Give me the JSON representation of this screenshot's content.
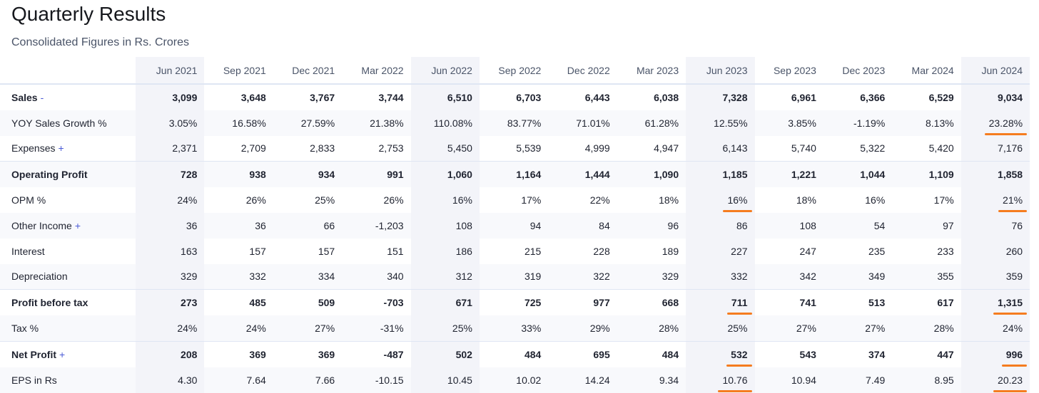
{
  "title": "Quarterly Results",
  "subtitle": "Consolidated Figures in Rs. Crores",
  "table": {
    "columns": [
      "Jun 2021",
      "Sep 2021",
      "Dec 2021",
      "Mar 2022",
      "Jun 2022",
      "Sep 2022",
      "Dec 2022",
      "Mar 2023",
      "Jun 2023",
      "Sep 2023",
      "Dec 2023",
      "Mar 2024",
      "Jun 2024"
    ],
    "shaded_columns": [
      0,
      4,
      8,
      12
    ],
    "rows": [
      {
        "label": "Sales",
        "toggle": "-",
        "bold": true,
        "values": [
          "3,099",
          "3,648",
          "3,767",
          "3,744",
          "6,510",
          "6,703",
          "6,443",
          "6,038",
          "7,328",
          "6,961",
          "6,366",
          "6,529",
          "9,034"
        ]
      },
      {
        "label": "YOY Sales Growth %",
        "bold": false,
        "values": [
          "3.05%",
          "16.58%",
          "27.59%",
          "21.38%",
          "110.08%",
          "83.77%",
          "71.01%",
          "61.28%",
          "12.55%",
          "3.85%",
          "-1.19%",
          "8.13%",
          "23.28%"
        ],
        "underlined_columns": [
          12
        ]
      },
      {
        "label": "Expenses",
        "toggle": "+",
        "bold": false,
        "values": [
          "2,371",
          "2,709",
          "2,833",
          "2,753",
          "5,450",
          "5,539",
          "4,999",
          "4,947",
          "6,143",
          "5,740",
          "5,322",
          "5,420",
          "7,176"
        ]
      },
      {
        "label": "Operating Profit",
        "bold": true,
        "values": [
          "728",
          "938",
          "934",
          "991",
          "1,060",
          "1,164",
          "1,444",
          "1,090",
          "1,185",
          "1,221",
          "1,044",
          "1,109",
          "1,858"
        ]
      },
      {
        "label": "OPM %",
        "bold": false,
        "values": [
          "24%",
          "26%",
          "25%",
          "26%",
          "16%",
          "17%",
          "22%",
          "18%",
          "16%",
          "18%",
          "16%",
          "17%",
          "21%"
        ],
        "underlined_columns": [
          8,
          12
        ]
      },
      {
        "label": "Other Income",
        "toggle": "+",
        "bold": false,
        "values": [
          "36",
          "36",
          "66",
          "-1,203",
          "108",
          "94",
          "84",
          "96",
          "86",
          "108",
          "54",
          "97",
          "76"
        ]
      },
      {
        "label": "Interest",
        "bold": false,
        "values": [
          "163",
          "157",
          "157",
          "151",
          "186",
          "215",
          "228",
          "189",
          "227",
          "247",
          "235",
          "233",
          "260"
        ]
      },
      {
        "label": "Depreciation",
        "bold": false,
        "values": [
          "329",
          "332",
          "334",
          "340",
          "312",
          "319",
          "322",
          "329",
          "332",
          "342",
          "349",
          "355",
          "359"
        ]
      },
      {
        "label": "Profit before tax",
        "bold": true,
        "values": [
          "273",
          "485",
          "509",
          "-703",
          "671",
          "725",
          "977",
          "668",
          "711",
          "741",
          "513",
          "617",
          "1,315"
        ],
        "underlined_columns": [
          8,
          12
        ]
      },
      {
        "label": "Tax %",
        "bold": false,
        "values": [
          "24%",
          "24%",
          "27%",
          "-31%",
          "25%",
          "33%",
          "29%",
          "28%",
          "25%",
          "27%",
          "27%",
          "28%",
          "24%"
        ]
      },
      {
        "label": "Net Profit",
        "toggle": "+",
        "bold": true,
        "values": [
          "208",
          "369",
          "369",
          "-487",
          "502",
          "484",
          "695",
          "484",
          "532",
          "543",
          "374",
          "447",
          "996"
        ],
        "underlined_columns": [
          8,
          12
        ]
      },
      {
        "label": "EPS in Rs",
        "bold": false,
        "values": [
          "4.30",
          "7.64",
          "7.66",
          "-10.15",
          "10.45",
          "10.02",
          "14.24",
          "9.34",
          "10.76",
          "10.94",
          "7.49",
          "8.95",
          "20.23"
        ],
        "underlined_columns": [
          8,
          12
        ]
      }
    ]
  }
}
